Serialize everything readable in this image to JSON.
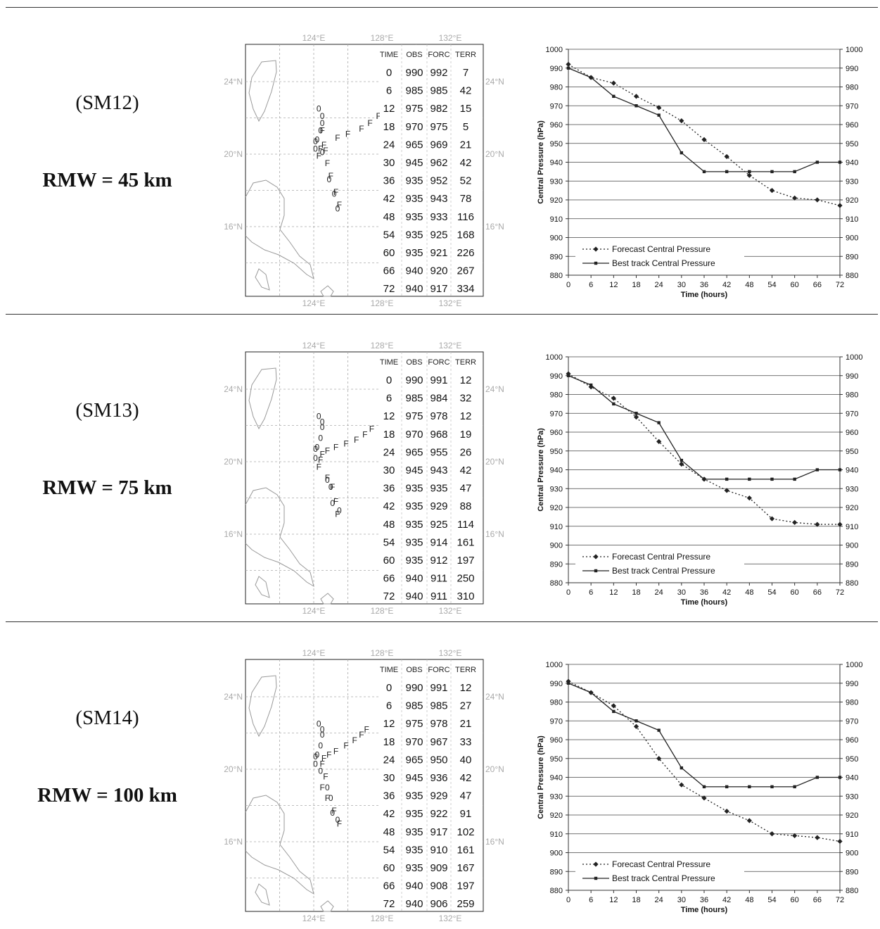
{
  "axis_text": {
    "lon_labels": [
      "124°E",
      "128°E",
      "132°E"
    ],
    "lat_labels": [
      "24°N",
      "20°N",
      "16°N"
    ],
    "table_headers": [
      "TIME",
      "OBS",
      "FORC",
      "TERR"
    ],
    "y_title": "Central Pressure (hPa)",
    "x_title": "Time (hours)",
    "legend_forecast": "Forecast Central Pressure",
    "legend_best": "Best track Central Pressure"
  },
  "chart_data": [
    {
      "type": "line",
      "case_label": "(SM12)",
      "rmw_label": "RMW = 45 km",
      "x": [
        0,
        6,
        12,
        18,
        24,
        30,
        36,
        42,
        48,
        54,
        60,
        66,
        72
      ],
      "x_ticks": [
        0,
        6,
        12,
        18,
        24,
        30,
        36,
        42,
        48,
        54,
        60,
        66,
        72
      ],
      "ylim": [
        880,
        1000
      ],
      "y_ticks": [
        880,
        890,
        900,
        910,
        920,
        930,
        940,
        950,
        960,
        970,
        980,
        990,
        1000
      ],
      "series": [
        {
          "name": "Forecast Central Pressure",
          "style": "dotted-diamond",
          "values": [
            992,
            985,
            982,
            975,
            969,
            962,
            952,
            943,
            933,
            925,
            921,
            920,
            917
          ]
        },
        {
          "name": "Best track Central Pressure",
          "style": "solid-square",
          "values": [
            990,
            985,
            975,
            970,
            965,
            945,
            935,
            935,
            935,
            935,
            935,
            940,
            940
          ]
        }
      ],
      "table_rows": [
        [
          "0",
          "990",
          "992",
          "7"
        ],
        [
          "6",
          "985",
          "985",
          "42"
        ],
        [
          "12",
          "975",
          "982",
          "15"
        ],
        [
          "18",
          "970",
          "975",
          "5"
        ],
        [
          "24",
          "965",
          "969",
          "21"
        ],
        [
          "30",
          "945",
          "962",
          "42"
        ],
        [
          "36",
          "935",
          "952",
          "52"
        ],
        [
          "42",
          "935",
          "943",
          "78"
        ],
        [
          "48",
          "935",
          "933",
          "116"
        ],
        [
          "54",
          "935",
          "925",
          "168"
        ],
        [
          "60",
          "935",
          "921",
          "226"
        ],
        [
          "66",
          "940",
          "920",
          "267"
        ],
        [
          "72",
          "940",
          "917",
          "334"
        ]
      ],
      "track_forecast": [
        [
          124.5,
          21.3
        ],
        [
          125.4,
          20.9
        ],
        [
          126.0,
          21.1
        ],
        [
          126.8,
          21.4
        ],
        [
          127.3,
          21.7
        ],
        [
          127.8,
          22.1
        ],
        [
          124.4,
          20.3
        ],
        [
          124.6,
          20.5
        ],
        [
          124.7,
          20.2
        ],
        [
          124.3,
          19.9
        ],
        [
          124.8,
          19.5
        ],
        [
          125.0,
          18.8
        ],
        [
          125.3,
          17.9
        ],
        [
          125.5,
          17.2
        ]
      ],
      "track_observed": [
        [
          124.3,
          22.5
        ],
        [
          124.5,
          22.1
        ],
        [
          124.5,
          21.7
        ],
        [
          124.4,
          21.3
        ],
        [
          124.1,
          20.7
        ],
        [
          124.2,
          20.8
        ],
        [
          124.1,
          20.3
        ],
        [
          124.5,
          20.1
        ],
        [
          124.9,
          18.6
        ],
        [
          125.2,
          17.8
        ],
        [
          125.4,
          17.0
        ]
      ]
    },
    {
      "type": "line",
      "case_label": "(SM13)",
      "rmw_label": "RMW = 75 km",
      "x": [
        0,
        6,
        12,
        18,
        24,
        30,
        36,
        42,
        48,
        54,
        60,
        66,
        72
      ],
      "x_ticks": [
        0,
        6,
        12,
        18,
        24,
        30,
        36,
        42,
        48,
        54,
        60,
        66,
        72
      ],
      "ylim": [
        880,
        1000
      ],
      "y_ticks": [
        880,
        890,
        900,
        910,
        920,
        930,
        940,
        950,
        960,
        970,
        980,
        990,
        1000
      ],
      "series": [
        {
          "name": "Forecast Central Pressure",
          "style": "dotted-diamond",
          "values": [
            991,
            984,
            978,
            968,
            955,
            943,
            935,
            929,
            925,
            914,
            912,
            911,
            911
          ]
        },
        {
          "name": "Best track Central Pressure",
          "style": "solid-square",
          "values": [
            990,
            985,
            975,
            970,
            965,
            945,
            935,
            935,
            935,
            935,
            935,
            940,
            940
          ]
        }
      ],
      "table_rows": [
        [
          "0",
          "990",
          "991",
          "12"
        ],
        [
          "6",
          "985",
          "984",
          "32"
        ],
        [
          "12",
          "975",
          "978",
          "12"
        ],
        [
          "18",
          "970",
          "968",
          "19"
        ],
        [
          "24",
          "965",
          "955",
          "26"
        ],
        [
          "30",
          "945",
          "943",
          "42"
        ],
        [
          "36",
          "935",
          "935",
          "47"
        ],
        [
          "42",
          "935",
          "929",
          "88"
        ],
        [
          "48",
          "935",
          "925",
          "114"
        ],
        [
          "54",
          "935",
          "914",
          "161"
        ],
        [
          "60",
          "935",
          "912",
          "197"
        ],
        [
          "66",
          "940",
          "911",
          "250"
        ],
        [
          "72",
          "940",
          "911",
          "310"
        ]
      ],
      "track_forecast": [
        [
          124.5,
          20.4
        ],
        [
          124.8,
          20.6
        ],
        [
          125.3,
          20.8
        ],
        [
          125.9,
          21.0
        ],
        [
          126.5,
          21.2
        ],
        [
          127.0,
          21.5
        ],
        [
          127.4,
          21.8
        ],
        [
          124.4,
          20.1
        ],
        [
          124.3,
          19.7
        ],
        [
          124.8,
          19.1
        ],
        [
          125.1,
          18.6
        ],
        [
          125.3,
          17.8
        ],
        [
          125.4,
          17.1
        ]
      ],
      "track_observed": [
        [
          124.3,
          22.5
        ],
        [
          124.5,
          22.2
        ],
        [
          124.5,
          21.9
        ],
        [
          124.4,
          21.3
        ],
        [
          124.1,
          20.7
        ],
        [
          124.2,
          20.8
        ],
        [
          124.1,
          20.2
        ],
        [
          124.8,
          19.0
        ],
        [
          125.0,
          18.6
        ],
        [
          125.1,
          17.7
        ],
        [
          125.5,
          17.3
        ]
      ]
    },
    {
      "type": "line",
      "case_label": "(SM14)",
      "rmw_label": "RMW = 100 km",
      "x": [
        0,
        6,
        12,
        18,
        24,
        30,
        36,
        42,
        48,
        54,
        60,
        66,
        72
      ],
      "x_ticks": [
        0,
        6,
        12,
        18,
        24,
        30,
        36,
        42,
        48,
        54,
        60,
        66,
        72
      ],
      "ylim": [
        880,
        1000
      ],
      "y_ticks": [
        880,
        890,
        900,
        910,
        920,
        930,
        940,
        950,
        960,
        970,
        980,
        990,
        1000
      ],
      "series": [
        {
          "name": "Forecast Central Pressure",
          "style": "dotted-diamond",
          "values": [
            991,
            985,
            978,
            967,
            950,
            936,
            929,
            922,
            917,
            910,
            909,
            908,
            906
          ]
        },
        {
          "name": "Best track Central Pressure",
          "style": "solid-square",
          "values": [
            990,
            985,
            975,
            970,
            965,
            945,
            935,
            935,
            935,
            935,
            935,
            940,
            940
          ]
        }
      ],
      "table_rows": [
        [
          "0",
          "990",
          "991",
          "12"
        ],
        [
          "6",
          "985",
          "985",
          "27"
        ],
        [
          "12",
          "975",
          "978",
          "21"
        ],
        [
          "18",
          "970",
          "967",
          "33"
        ],
        [
          "24",
          "965",
          "950",
          "40"
        ],
        [
          "30",
          "945",
          "936",
          "42"
        ],
        [
          "36",
          "935",
          "929",
          "47"
        ],
        [
          "42",
          "935",
          "922",
          "91"
        ],
        [
          "48",
          "935",
          "917",
          "102"
        ],
        [
          "54",
          "935",
          "910",
          "161"
        ],
        [
          "60",
          "935",
          "909",
          "167"
        ],
        [
          "66",
          "940",
          "908",
          "197"
        ],
        [
          "72",
          "940",
          "906",
          "259"
        ]
      ],
      "track_forecast": [
        [
          124.6,
          20.6
        ],
        [
          124.9,
          20.8
        ],
        [
          125.3,
          21.0
        ],
        [
          125.9,
          21.3
        ],
        [
          126.4,
          21.6
        ],
        [
          126.8,
          21.9
        ],
        [
          127.1,
          22.2
        ],
        [
          124.5,
          20.3
        ],
        [
          124.7,
          19.6
        ],
        [
          124.5,
          19.0
        ],
        [
          124.8,
          18.4
        ],
        [
          125.2,
          17.7
        ],
        [
          125.5,
          17.0
        ]
      ],
      "track_observed": [
        [
          124.3,
          22.5
        ],
        [
          124.5,
          22.2
        ],
        [
          124.5,
          21.9
        ],
        [
          124.4,
          21.3
        ],
        [
          124.1,
          20.7
        ],
        [
          124.2,
          20.8
        ],
        [
          124.1,
          20.3
        ],
        [
          124.4,
          19.9
        ],
        [
          124.8,
          19.0
        ],
        [
          125.0,
          18.4
        ],
        [
          125.1,
          17.6
        ],
        [
          125.4,
          17.2
        ]
      ]
    }
  ]
}
